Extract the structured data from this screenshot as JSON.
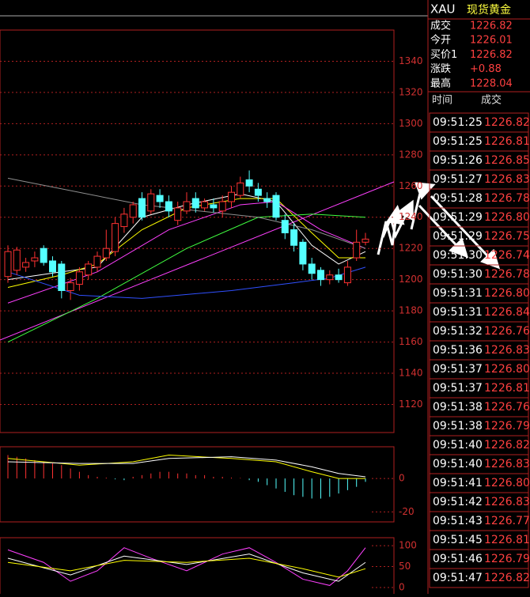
{
  "header": {
    "symbol": "XAU",
    "name": "现货黄金"
  },
  "quote": [
    {
      "label": "成交",
      "value": "1226.82"
    },
    {
      "label": "今开",
      "value": "1226.01"
    },
    {
      "label": "买价1",
      "value": "1226.82"
    },
    {
      "label": "涨跌",
      "value": "+0.88"
    },
    {
      "label": "最高",
      "value": "1228.04"
    }
  ],
  "trades": {
    "header": [
      "时间",
      "成交"
    ],
    "rows": [
      [
        "09:51:25",
        "1226.82"
      ],
      [
        "09:51:25",
        "1226.81"
      ],
      [
        "09:51:26",
        "1226.85"
      ],
      [
        "09:51:27",
        "1226.83"
      ],
      [
        "09:51:28",
        "1226.78"
      ],
      [
        "09:51:29",
        "1226.80"
      ],
      [
        "09:51:29",
        "1226.75"
      ],
      [
        "09:51:30",
        "1226.74"
      ],
      [
        "09:51:30",
        "1226.78"
      ],
      [
        "09:51:31",
        "1226.80"
      ],
      [
        "09:51:31",
        "1226.84"
      ],
      [
        "09:51:32",
        "1226.76"
      ],
      [
        "09:51:36",
        "1226.83"
      ],
      [
        "09:51:37",
        "1226.80"
      ],
      [
        "09:51:37",
        "1226.81"
      ],
      [
        "09:51:38",
        "1226.76"
      ],
      [
        "09:51:38",
        "1226.79"
      ],
      [
        "09:51:40",
        "1226.82"
      ],
      [
        "09:51:40",
        "1226.83"
      ],
      [
        "09:51:41",
        "1226.80"
      ],
      [
        "09:51:42",
        "1226.83"
      ],
      [
        "09:51:43",
        "1226.77"
      ],
      [
        "09:51:45",
        "1226.81"
      ],
      [
        "09:51:46",
        "1226.79"
      ],
      [
        "09:51:47",
        "1226.82"
      ]
    ]
  },
  "chart_data": [
    {
      "type": "candlestick",
      "ylim": [
        1102,
        1360
      ],
      "yticks": [
        1120,
        1140,
        1160,
        1180,
        1200,
        1220,
        1240,
        1260,
        1280,
        1300,
        1320,
        1340
      ],
      "grid": true,
      "open": [
        1202,
        1206,
        1208,
        1212,
        1220,
        1212,
        1210,
        1193,
        1197,
        1203,
        1208,
        1214,
        1218,
        1234,
        1240,
        1252,
        1244,
        1254,
        1250,
        1238,
        1244,
        1252,
        1246,
        1248,
        1244,
        1250,
        1254,
        1264,
        1258,
        1252,
        1254,
        1238,
        1232,
        1224,
        1210,
        1206,
        1200,
        1203,
        1198,
        1214,
        1224
      ],
      "high": [
        1222,
        1221,
        1214,
        1218,
        1222,
        1215,
        1212,
        1201,
        1208,
        1212,
        1218,
        1232,
        1240,
        1246,
        1250,
        1256,
        1258,
        1258,
        1254,
        1250,
        1256,
        1256,
        1252,
        1252,
        1254,
        1260,
        1266,
        1270,
        1262,
        1256,
        1256,
        1242,
        1236,
        1226,
        1214,
        1208,
        1206,
        1207,
        1212,
        1232,
        1230
      ],
      "low": [
        1198,
        1203,
        1205,
        1208,
        1209,
        1202,
        1188,
        1187,
        1193,
        1200,
        1205,
        1212,
        1215,
        1230,
        1236,
        1238,
        1242,
        1246,
        1240,
        1235,
        1242,
        1243,
        1244,
        1243,
        1240,
        1246,
        1252,
        1256,
        1250,
        1246,
        1238,
        1226,
        1218,
        1206,
        1200,
        1196,
        1197,
        1198,
        1196,
        1212,
        1222
      ],
      "close": [
        1218,
        1219,
        1211,
        1214,
        1211,
        1205,
        1193,
        1198,
        1205,
        1210,
        1215,
        1220,
        1236,
        1242,
        1248,
        1240,
        1255,
        1250,
        1244,
        1246,
        1250,
        1246,
        1250,
        1246,
        1250,
        1256,
        1262,
        1260,
        1254,
        1250,
        1240,
        1230,
        1222,
        1210,
        1204,
        1200,
        1203,
        1200,
        1208,
        1224,
        1226
      ],
      "lines": [
        {
          "color": "#ffffff",
          "x": [
            0,
            6,
            10,
            15,
            20,
            26,
            30,
            34,
            37,
            40
          ],
          "values": [
            1200,
            1205,
            1208,
            1240,
            1248,
            1255,
            1250,
            1222,
            1210,
            1218
          ]
        },
        {
          "color": "#ffff00",
          "x": [
            0,
            6,
            10,
            15,
            20,
            26,
            30,
            34,
            37,
            40
          ],
          "values": [
            1195,
            1203,
            1210,
            1232,
            1246,
            1252,
            1252,
            1230,
            1214,
            1214
          ]
        },
        {
          "color": "#ff40ff",
          "x": [
            0,
            10,
            18,
            26,
            30,
            35,
            40
          ],
          "values": [
            1185,
            1205,
            1232,
            1248,
            1250,
            1232,
            1220
          ]
        },
        {
          "color": "#40ff40",
          "x": [
            0,
            10,
            20,
            28,
            34,
            40
          ],
          "values": [
            1160,
            1188,
            1220,
            1240,
            1242,
            1240
          ]
        },
        {
          "color": "#3050ff",
          "x": [
            0,
            8,
            15,
            25,
            32,
            36,
            40
          ],
          "values": [
            1205,
            1190,
            1188,
            1193,
            1198,
            1201,
            1208
          ]
        },
        {
          "color": "#909090",
          "x": [
            0,
            15,
            28,
            34,
            40
          ],
          "values": [
            1265,
            1248,
            1240,
            1232,
            1220
          ]
        }
      ]
    },
    {
      "type": "macd",
      "ylim": [
        -26,
        19
      ],
      "yticks": [
        0,
        -20
      ],
      "values": [
        14,
        13,
        12,
        11,
        10,
        9,
        8,
        6,
        4,
        2,
        1,
        0.5,
        -0.5,
        -1,
        1,
        2,
        3,
        4,
        4,
        3,
        3,
        2,
        2,
        1,
        1,
        0.5,
        0.3,
        -1,
        -2,
        -4,
        -6,
        -8,
        -10,
        -11,
        -12,
        -12,
        -11,
        -9,
        -7,
        -5,
        -2
      ],
      "lines": [
        {
          "color": "#ffff00",
          "x": [
            0,
            8,
            14,
            18,
            25,
            30,
            34,
            37,
            40
          ],
          "values": [
            12,
            8,
            10,
            14,
            12,
            10,
            4,
            0,
            0
          ]
        },
        {
          "color": "#ffffff",
          "x": [
            0,
            8,
            14,
            18,
            25,
            30,
            34,
            37,
            40
          ],
          "values": [
            10,
            9,
            9,
            12,
            13,
            11,
            7,
            3,
            1
          ]
        }
      ]
    },
    {
      "type": "kdj",
      "ylim": [
        -15,
        119
      ],
      "yticks": [
        100,
        50,
        0
      ],
      "lines": [
        {
          "color": "#ff40ff",
          "x": [
            0,
            4,
            7,
            10,
            13,
            16,
            20,
            24,
            27,
            30,
            33,
            36,
            38,
            40
          ],
          "values": [
            90,
            60,
            15,
            40,
            95,
            70,
            40,
            80,
            95,
            60,
            20,
            5,
            40,
            95
          ]
        },
        {
          "color": "#ffffff",
          "x": [
            0,
            7,
            13,
            20,
            27,
            33,
            37,
            40
          ],
          "values": [
            70,
            30,
            75,
            55,
            80,
            35,
            15,
            60
          ]
        },
        {
          "color": "#ffff00",
          "x": [
            0,
            7,
            13,
            20,
            27,
            33,
            37,
            40
          ],
          "values": [
            60,
            40,
            65,
            60,
            70,
            45,
            25,
            45
          ]
        }
      ]
    }
  ]
}
